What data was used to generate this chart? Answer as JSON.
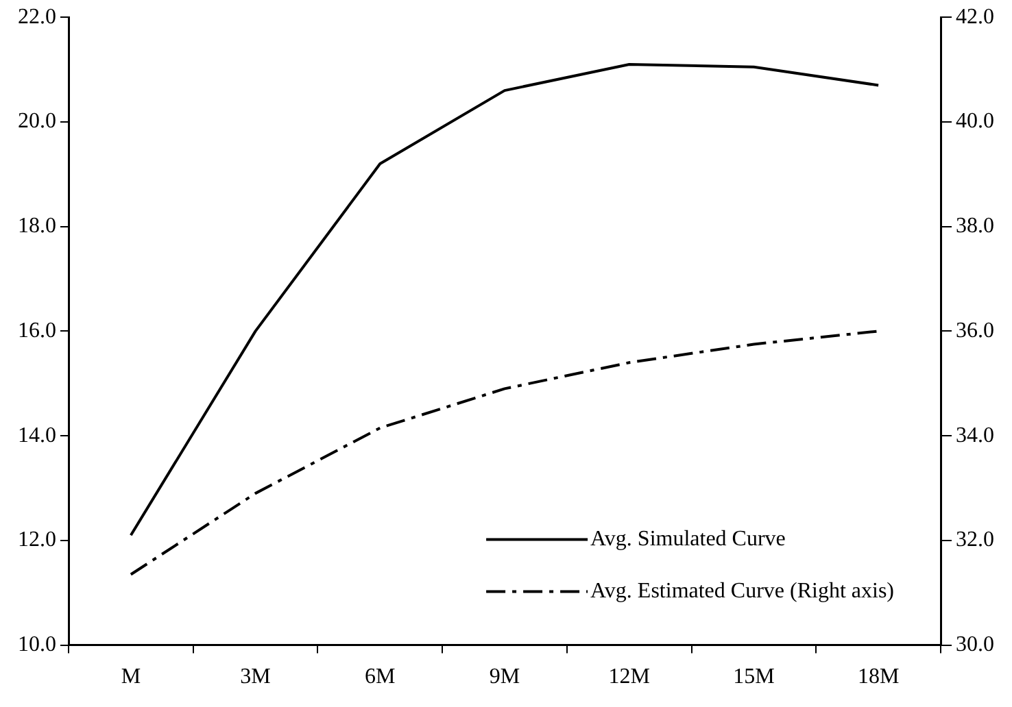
{
  "chart_data": {
    "type": "line",
    "categories": [
      "M",
      "3M",
      "6M",
      "9M",
      "12M",
      "15M",
      "18M"
    ],
    "series": [
      {
        "name": "Avg. Simulated Curve",
        "color": "#000000",
        "line_style": "solid",
        "values": [
          12.1,
          16.0,
          19.2,
          20.6,
          21.1,
          21.05,
          20.7
        ]
      },
      {
        "name": "Avg. Estimated Curve (Right axis)",
        "color": "#000000",
        "line_style": "dashdot",
        "axis": "y2",
        "values": [
          31.35,
          32.9,
          34.15,
          34.9,
          35.4,
          35.75,
          36.0
        ]
      }
    ],
    "ylim": [
      10,
      22
    ],
    "yticks": [
      {
        "value": 10,
        "label": "10.0"
      },
      {
        "value": 12,
        "label": "12.0"
      },
      {
        "value": 14,
        "label": "14.0"
      },
      {
        "value": 16,
        "label": "16.0"
      },
      {
        "value": 18,
        "label": "18.0"
      },
      {
        "value": 20,
        "label": "20.0"
      },
      {
        "value": 22,
        "label": "22.0"
      }
    ],
    "y2lim": [
      30,
      42
    ],
    "y2ticks": [
      {
        "value": 30,
        "label": "30.0"
      },
      {
        "value": 32,
        "label": "32.0"
      },
      {
        "value": 34,
        "label": "34.0"
      },
      {
        "value": 36,
        "label": "36.0"
      },
      {
        "value": 38,
        "label": "38.0"
      },
      {
        "value": 40,
        "label": "40.0"
      },
      {
        "value": 42,
        "label": "42.0"
      }
    ],
    "grid": false,
    "legend": "bottom right",
    "marker": "none"
  }
}
